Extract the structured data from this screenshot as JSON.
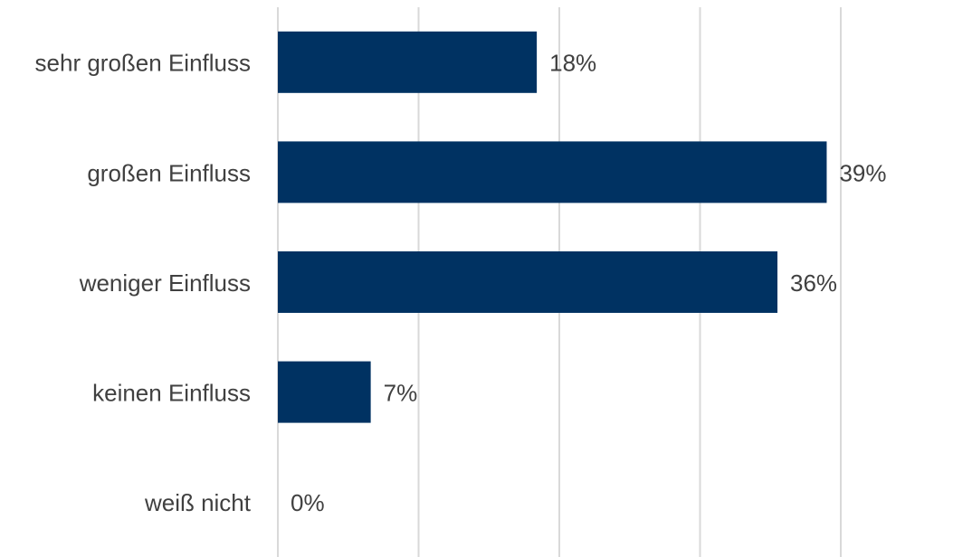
{
  "chart_data": {
    "type": "bar",
    "orientation": "horizontal",
    "categories": [
      "sehr großen Einfluss",
      "großen Einfluss",
      "weniger Einfluss",
      "keinen Einfluss",
      "weiß nicht"
    ],
    "values": [
      18.4,
      39,
      35.5,
      6.6,
      0
    ],
    "value_labels": [
      "18%",
      "39%",
      "36%",
      "7%",
      "0%"
    ],
    "color": "#003262",
    "xlim": [
      0,
      40
    ],
    "xticks": [
      0,
      10,
      20,
      30,
      40
    ],
    "grid": true
  }
}
